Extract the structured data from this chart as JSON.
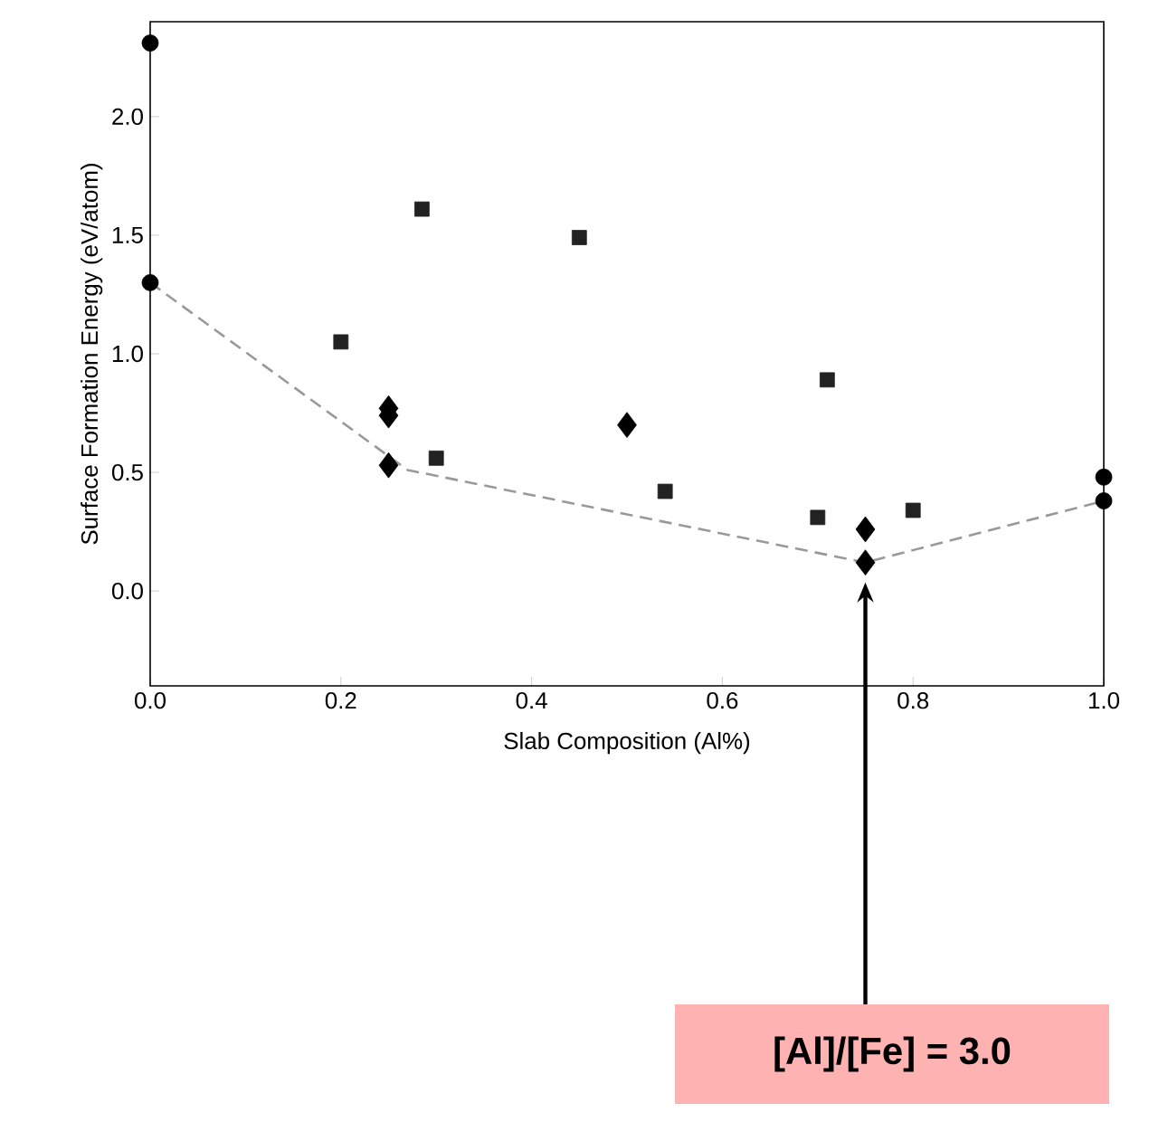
{
  "chart_data": {
    "type": "scatter",
    "xlabel": "Slab Composition (Al%)",
    "ylabel": "Surface Formation Energy (eV/atom)",
    "xlim": [
      0,
      1
    ],
    "ylim": [
      -0.4,
      2.4
    ],
    "xticks": [
      {
        "value": 0,
        "label": "0.0"
      },
      0.2,
      0.4,
      0.6,
      0.8,
      {
        "value": 1,
        "label": "1.0"
      }
    ],
    "yticks": [
      {
        "value": 0,
        "label": "0.0"
      },
      0.5,
      {
        "value": 1,
        "label": "1.0"
      },
      1.5,
      {
        "value": 2,
        "label": "2.0"
      }
    ],
    "series": [
      {
        "type": "line",
        "line_style": "dashed",
        "marker": "none",
        "color": "#999999",
        "x": [
          0,
          0.27,
          0.75,
          1.0
        ],
        "values": [
          1.3,
          0.51,
          0.12,
          0.38
        ]
      },
      {
        "marker": "circle",
        "color": "#000000",
        "x": [
          0,
          0,
          1.0,
          1.0
        ],
        "values": [
          2.31,
          1.3,
          0.48,
          0.38
        ]
      },
      {
        "marker": "square",
        "color": "#222222",
        "x": [
          0.2,
          0.285,
          0.3,
          0.45,
          0.71,
          0.54,
          0.7,
          0.8
        ],
        "values": [
          1.05,
          1.61,
          0.56,
          1.49,
          0.89,
          0.42,
          0.31,
          0.34
        ]
      },
      {
        "marker": "diamond",
        "color": "#000000",
        "x": [
          0.25,
          0.25,
          0.25,
          0.5,
          0.75,
          0.75
        ],
        "values": [
          0.77,
          0.74,
          0.53,
          0.7,
          0.26,
          0.12
        ]
      }
    ],
    "annotations": [
      "[Al]/[Fe] = 3.0"
    ]
  }
}
